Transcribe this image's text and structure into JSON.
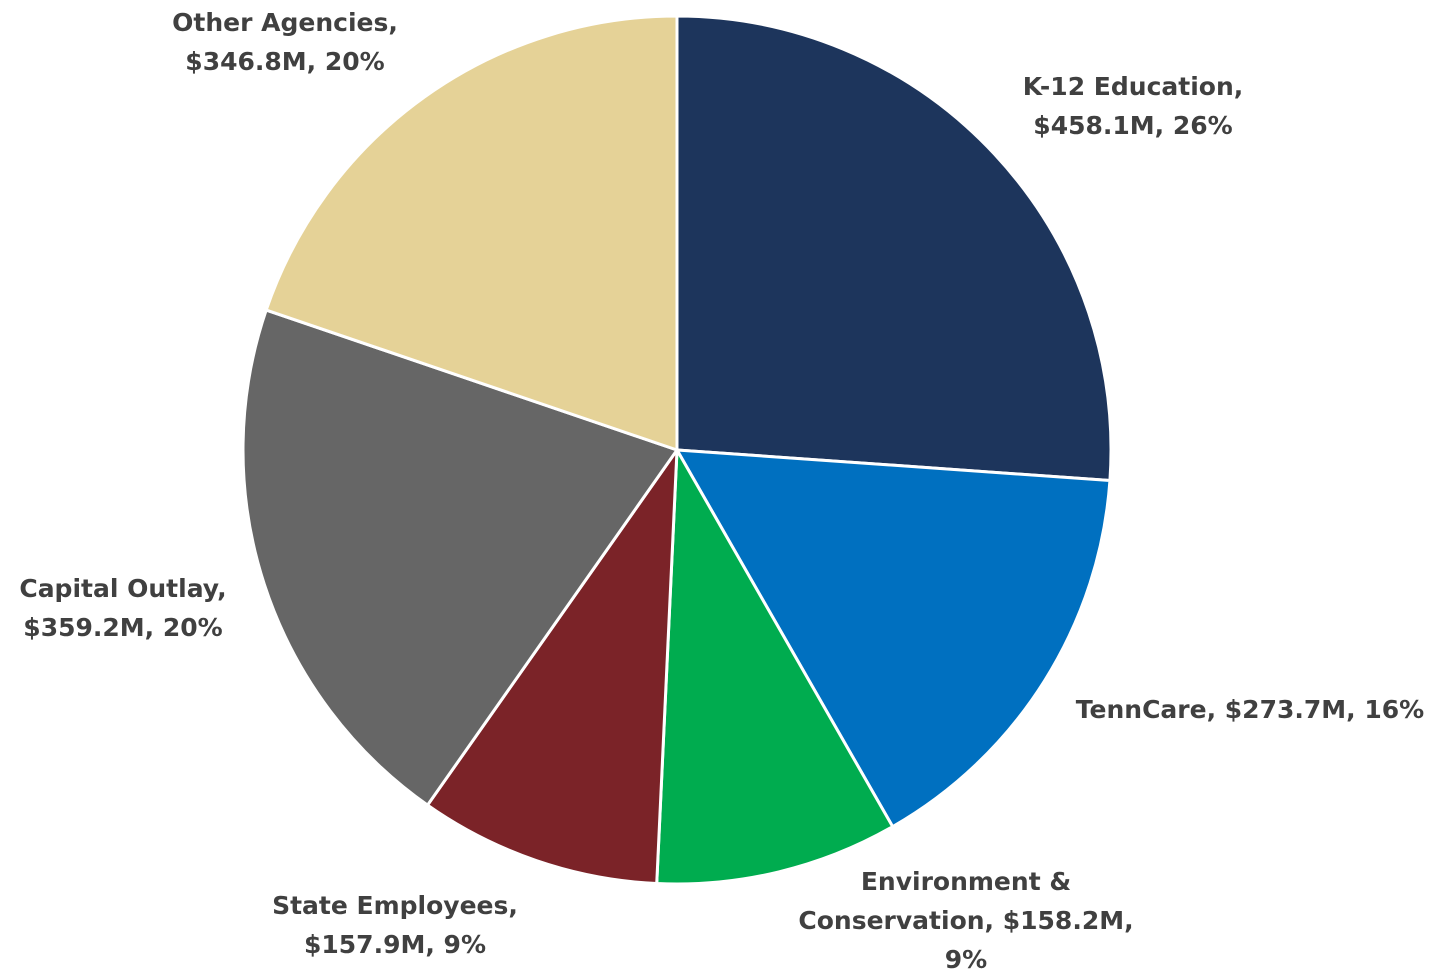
{
  "chart_data": {
    "type": "pie",
    "start_angle_deg": 0,
    "direction": "clockwise",
    "slices": [
      {
        "label": "K-12 Education",
        "value": 458.1,
        "value_text": "$458.1M",
        "percent_text": "26%",
        "color": "#1d355c",
        "label_lines": [
          "K-12 Education,",
          "$458.1M, 26%"
        ]
      },
      {
        "label": "TennCare",
        "value": 273.7,
        "value_text": "$273.7M",
        "percent_text": "16%",
        "color": "#0070c0",
        "label_lines": [
          "TennCare, $273.7M, 16%"
        ]
      },
      {
        "label": "Environment & Conservation",
        "value": 158.2,
        "value_text": "$158.2M",
        "percent_text": "9%",
        "color": "#00ac4f",
        "label_lines": [
          "Environment &",
          "Conservation, $158.2M,",
          "9%"
        ]
      },
      {
        "label": "State Employees",
        "value": 157.9,
        "value_text": "$157.9M",
        "percent_text": "9%",
        "color": "#7b2328",
        "label_lines": [
          "State Employees,",
          "$157.9M, 9%"
        ]
      },
      {
        "label": "Capital Outlay",
        "value": 359.2,
        "value_text": "$359.2M",
        "percent_text": "20%",
        "color": "#666666",
        "label_lines": [
          "Capital Outlay,",
          "$359.2M, 20%"
        ]
      },
      {
        "label": "Other Agencies",
        "value": 346.8,
        "value_text": "$346.8M",
        "percent_text": "20%",
        "color": "#e5d297",
        "label_lines": [
          "Other Agencies,",
          "$346.8M, 20%"
        ]
      }
    ],
    "legend": "none",
    "label_color": "#404040"
  }
}
